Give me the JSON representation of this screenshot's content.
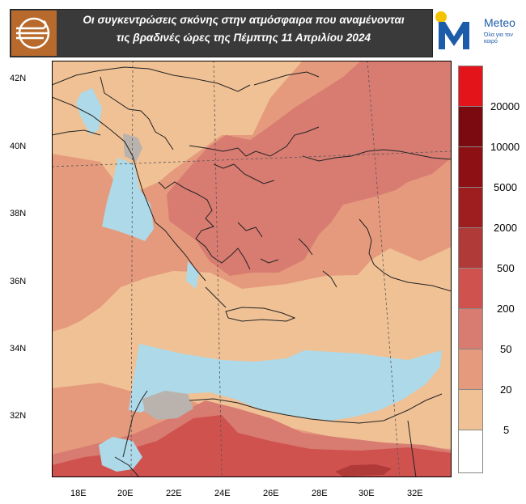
{
  "header": {
    "title_line1": "Οι συγκεντρώσεις σκόνης στην ατμόσφαιρα που αναμένονται",
    "title_line2": "τις βραδινές ώρες της Πέμπτης 11 Απριλίου 2024",
    "brand_name": "Meteo",
    "brand_tagline": "Όλα για τον καιρό",
    "logo_left_icon": "dust-wind-icon",
    "logo_right_icon": "meteo-m-logo"
  },
  "map": {
    "latitude_labels": [
      "42N",
      "40N",
      "38N",
      "36N",
      "34N",
      "32N"
    ],
    "longitude_labels": [
      "18E",
      "20E",
      "22E",
      "24E",
      "26E",
      "28E",
      "30E",
      "32E"
    ],
    "region": "Eastern Mediterranean"
  },
  "colorbar": {
    "labels": [
      "20000",
      "10000",
      "5000",
      "2000",
      "500",
      "200",
      "50",
      "20",
      "5"
    ],
    "colors": [
      "#e4141b",
      "#7a0a10",
      "#8c1014",
      "#9e1d1e",
      "#b03a38",
      "#d0524f",
      "#d87c72",
      "#e59a7d",
      "#f0c195",
      "#ffffff"
    ]
  },
  "colors": {
    "background_dust": "#f0c195",
    "low_dust": "#add9e8",
    "header_bg": "#3a3a3a",
    "brand_blue": "#1d5ca8"
  }
}
